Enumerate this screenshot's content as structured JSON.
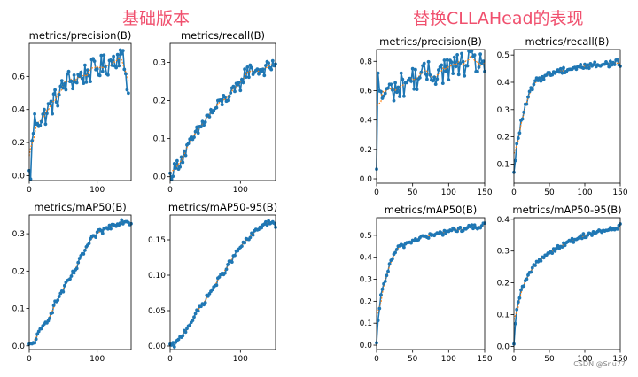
{
  "headings": {
    "left": "基础版本",
    "right": "替换CLLAHead的表现"
  },
  "watermark": "CSDN @Snu77",
  "colors": {
    "heading": "#f0506e",
    "series_line": "#1f77b4",
    "smooth_line": "#ff7f0e"
  },
  "chart_data": [
    {
      "type": "line",
      "group": "基础版本",
      "title": "metrics/precision(B)",
      "xlim": [
        0,
        150
      ],
      "ylim": [
        -0.03,
        0.8
      ],
      "xticks": [
        0,
        100
      ],
      "yticks": [
        0.0,
        0.2,
        0.4,
        0.6
      ],
      "anchors": [
        [
          0,
          0.0
        ],
        [
          2,
          0.02
        ],
        [
          3,
          0.1
        ],
        [
          5,
          0.25
        ],
        [
          8,
          0.33
        ],
        [
          12,
          0.35
        ],
        [
          18,
          0.33
        ],
        [
          25,
          0.38
        ],
        [
          35,
          0.44
        ],
        [
          45,
          0.5
        ],
        [
          55,
          0.57
        ],
        [
          70,
          0.59
        ],
        [
          85,
          0.62
        ],
        [
          100,
          0.65
        ],
        [
          115,
          0.67
        ],
        [
          125,
          0.71
        ],
        [
          132,
          0.73
        ],
        [
          138,
          0.7
        ],
        [
          143,
          0.6
        ],
        [
          147,
          0.5
        ]
      ],
      "noise": 0.07
    },
    {
      "type": "line",
      "group": "基础版本",
      "title": "metrics/recall(B)",
      "xlim": [
        0,
        150
      ],
      "ylim": [
        -0.01,
        0.35
      ],
      "xticks": [
        0,
        100
      ],
      "yticks": [
        0.0,
        0.1,
        0.2,
        0.3
      ],
      "anchors": [
        [
          0,
          0.0
        ],
        [
          3,
          0.01
        ],
        [
          10,
          0.03
        ],
        [
          20,
          0.06
        ],
        [
          30,
          0.09
        ],
        [
          40,
          0.12
        ],
        [
          50,
          0.15
        ],
        [
          60,
          0.17
        ],
        [
          70,
          0.19
        ],
        [
          80,
          0.21
        ],
        [
          90,
          0.22
        ],
        [
          100,
          0.24
        ],
        [
          105,
          0.27
        ],
        [
          115,
          0.28
        ],
        [
          130,
          0.28
        ],
        [
          145,
          0.29
        ],
        [
          150,
          0.3
        ]
      ],
      "noise": 0.018
    },
    {
      "type": "line",
      "group": "基础版本",
      "title": "metrics/mAP50(B)",
      "xlim": [
        0,
        150
      ],
      "ylim": [
        -0.01,
        0.35
      ],
      "xticks": [
        0,
        100
      ],
      "yticks": [
        0.0,
        0.1,
        0.2,
        0.3
      ],
      "anchors": [
        [
          0,
          0.0
        ],
        [
          5,
          0.005
        ],
        [
          10,
          0.02
        ],
        [
          20,
          0.05
        ],
        [
          30,
          0.08
        ],
        [
          40,
          0.12
        ],
        [
          50,
          0.15
        ],
        [
          60,
          0.18
        ],
        [
          70,
          0.21
        ],
        [
          80,
          0.25
        ],
        [
          90,
          0.28
        ],
        [
          100,
          0.3
        ],
        [
          110,
          0.31
        ],
        [
          120,
          0.32
        ],
        [
          130,
          0.33
        ],
        [
          140,
          0.335
        ],
        [
          150,
          0.33
        ]
      ],
      "noise": 0.008
    },
    {
      "type": "line",
      "group": "基础版本",
      "title": "metrics/mAP50-95(B)",
      "xlim": [
        0,
        150
      ],
      "ylim": [
        -0.005,
        0.185
      ],
      "xticks": [
        0,
        100
      ],
      "yticks": [
        0.0,
        0.05,
        0.1,
        0.15
      ],
      "anchors": [
        [
          0,
          0.0
        ],
        [
          5,
          0.001
        ],
        [
          10,
          0.005
        ],
        [
          20,
          0.02
        ],
        [
          30,
          0.035
        ],
        [
          40,
          0.05
        ],
        [
          50,
          0.065
        ],
        [
          60,
          0.08
        ],
        [
          70,
          0.095
        ],
        [
          80,
          0.11
        ],
        [
          90,
          0.125
        ],
        [
          100,
          0.14
        ],
        [
          110,
          0.15
        ],
        [
          120,
          0.16
        ],
        [
          130,
          0.17
        ],
        [
          140,
          0.175
        ],
        [
          150,
          0.17
        ]
      ],
      "noise": 0.004
    },
    {
      "type": "line",
      "group": "替换CLLAHead的表现",
      "title": "metrics/precision(B)",
      "xlim": [
        0,
        150
      ],
      "ylim": [
        -0.03,
        0.88
      ],
      "xticks": [
        0,
        50,
        100,
        150
      ],
      "yticks": [
        0.0,
        0.2,
        0.4,
        0.6,
        0.8
      ],
      "anchors": [
        [
          0,
          0.0
        ],
        [
          1,
          0.8
        ],
        [
          5,
          0.55
        ],
        [
          10,
          0.58
        ],
        [
          20,
          0.6
        ],
        [
          30,
          0.62
        ],
        [
          40,
          0.66
        ],
        [
          60,
          0.7
        ],
        [
          80,
          0.72
        ],
        [
          100,
          0.75
        ],
        [
          120,
          0.78
        ],
        [
          140,
          0.79
        ],
        [
          150,
          0.8
        ]
      ],
      "noise": 0.09
    },
    {
      "type": "line",
      "group": "替换CLLAHead的表现",
      "title": "metrics/recall(B)",
      "xlim": [
        0,
        150
      ],
      "ylim": [
        0.03,
        0.52
      ],
      "xticks": [
        0,
        50,
        100,
        150
      ],
      "yticks": [
        0.1,
        0.2,
        0.3,
        0.4,
        0.5
      ],
      "anchors": [
        [
          0,
          0.06
        ],
        [
          3,
          0.15
        ],
        [
          6,
          0.2
        ],
        [
          10,
          0.25
        ],
        [
          15,
          0.3
        ],
        [
          20,
          0.34
        ],
        [
          25,
          0.38
        ],
        [
          30,
          0.4
        ],
        [
          40,
          0.42
        ],
        [
          60,
          0.44
        ],
        [
          80,
          0.45
        ],
        [
          100,
          0.46
        ],
        [
          120,
          0.465
        ],
        [
          140,
          0.47
        ],
        [
          150,
          0.47
        ]
      ],
      "noise": 0.012
    },
    {
      "type": "line",
      "group": "替换CLLAHead的表现",
      "title": "metrics/mAP50(B)",
      "xlim": [
        0,
        150
      ],
      "ylim": [
        -0.02,
        0.58
      ],
      "xticks": [
        0,
        50,
        100,
        150
      ],
      "yticks": [
        0.0,
        0.1,
        0.2,
        0.3,
        0.4,
        0.5
      ],
      "anchors": [
        [
          0,
          0.0
        ],
        [
          3,
          0.15
        ],
        [
          6,
          0.22
        ],
        [
          10,
          0.28
        ],
        [
          15,
          0.33
        ],
        [
          20,
          0.38
        ],
        [
          25,
          0.42
        ],
        [
          30,
          0.44
        ],
        [
          40,
          0.46
        ],
        [
          60,
          0.49
        ],
        [
          80,
          0.5
        ],
        [
          100,
          0.52
        ],
        [
          120,
          0.53
        ],
        [
          140,
          0.54
        ],
        [
          150,
          0.545
        ]
      ],
      "noise": 0.012
    },
    {
      "type": "line",
      "group": "替换CLLAHead的表现",
      "title": "metrics/mAP50-95(B)",
      "xlim": [
        0,
        150
      ],
      "ylim": [
        -0.01,
        0.405
      ],
      "xticks": [
        0,
        50,
        100,
        150
      ],
      "yticks": [
        0.0,
        0.1,
        0.2,
        0.3,
        0.4
      ],
      "anchors": [
        [
          0,
          0.0
        ],
        [
          3,
          0.1
        ],
        [
          6,
          0.14
        ],
        [
          10,
          0.17
        ],
        [
          15,
          0.2
        ],
        [
          20,
          0.22
        ],
        [
          25,
          0.24
        ],
        [
          30,
          0.26
        ],
        [
          40,
          0.28
        ],
        [
          60,
          0.31
        ],
        [
          80,
          0.33
        ],
        [
          100,
          0.35
        ],
        [
          120,
          0.36
        ],
        [
          140,
          0.37
        ],
        [
          150,
          0.38
        ]
      ],
      "noise": 0.008
    }
  ]
}
